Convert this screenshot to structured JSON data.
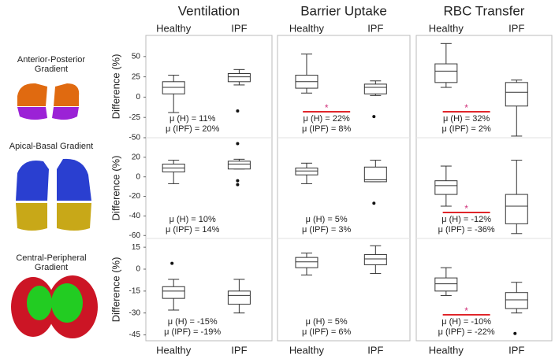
{
  "chart_data": {
    "type": "box",
    "columns": [
      "Ventilation",
      "Barrier Uptake",
      "RBC Transfer"
    ],
    "categories": [
      "Healthy",
      "IPF"
    ],
    "rows": [
      {
        "title": "Anterior-Posterior Gradient",
        "ylabel": "Difference (%)",
        "ylim": [
          -50,
          76
        ],
        "yticks": [
          -50,
          -25,
          0,
          25,
          50
        ],
        "panels": [
          {
            "boxes": [
              {
                "whislo": -19,
                "q1": 4,
                "med": 12,
                "q3": 19,
                "whishi": 27,
                "fliers": []
              },
              {
                "whislo": 15,
                "q1": 19,
                "med": 25,
                "q3": 29,
                "whishi": 34,
                "fliers": [
                  -17
                ]
              }
            ],
            "annotations": [
              "μ (H) = 11%",
              "μ (IPF) = 20%"
            ]
          },
          {
            "boxes": [
              {
                "whislo": 5,
                "q1": 11,
                "med": 19,
                "q3": 27,
                "whishi": 53,
                "fliers": []
              },
              {
                "whislo": 2,
                "q1": 4,
                "med": 12,
                "q3": 16,
                "whishi": 20,
                "fliers": [
                  -24
                ]
              }
            ],
            "annotations": [
              "μ (H) = 22%",
              "μ (IPF) = 8%"
            ],
            "significance": "*"
          },
          {
            "boxes": [
              {
                "whislo": 12,
                "q1": 18,
                "med": 32,
                "q3": 41,
                "whishi": 66,
                "fliers": []
              },
              {
                "whislo": -48,
                "q1": -11,
                "med": 6,
                "q3": 18,
                "whishi": 21,
                "fliers": []
              }
            ],
            "annotations": [
              "μ (H) = 32%",
              "μ (IPF) = 2%"
            ],
            "significance": "*"
          }
        ]
      },
      {
        "title": "Apical-Basal Gradient",
        "ylabel": "Difference (%)",
        "ylim": [
          -63,
          40
        ],
        "yticks": [
          -60,
          -40,
          -20,
          0,
          20
        ],
        "panels": [
          {
            "boxes": [
              {
                "whislo": -7,
                "q1": 5,
                "med": 9,
                "q3": 13,
                "whishi": 17,
                "fliers": []
              },
              {
                "whislo": 8,
                "q1": 8,
                "med": 13,
                "q3": 16,
                "whishi": 18,
                "fliers": [
                  34,
                  -4,
                  -8
                ]
              }
            ],
            "annotations": [
              "μ (H) = 10%",
              "μ (IPF) = 14%"
            ]
          },
          {
            "boxes": [
              {
                "whislo": -7,
                "q1": 2,
                "med": 6,
                "q3": 9,
                "whishi": 14,
                "fliers": []
              },
              {
                "whislo": -5,
                "q1": -5,
                "med": -3,
                "q3": 10,
                "whishi": 17,
                "fliers": [
                  -27
                ]
              }
            ],
            "annotations": [
              "μ (H) = 5%",
              "μ (IPF) = 3%"
            ]
          },
          {
            "boxes": [
              {
                "whislo": -30,
                "q1": -18,
                "med": -9,
                "q3": -4,
                "whishi": 11,
                "fliers": []
              },
              {
                "whislo": -58,
                "q1": -48,
                "med": -30,
                "q3": -18,
                "whishi": 17,
                "fliers": []
              }
            ],
            "annotations": [
              "μ (H) = -12%",
              "μ (IPF) = -36%"
            ],
            "significance": "*"
          }
        ]
      },
      {
        "title": "Central-Peripheral Gradient",
        "ylabel": "Difference (%)",
        "ylim": [
          -49,
          21
        ],
        "yticks": [
          -45,
          -30,
          -15,
          0,
          15
        ],
        "panels": [
          {
            "boxes": [
              {
                "whislo": -28,
                "q1": -20,
                "med": -15,
                "q3": -12,
                "whishi": -7,
                "fliers": [
                  4
                ]
              },
              {
                "whislo": -30,
                "q1": -24,
                "med": -18,
                "q3": -15,
                "whishi": -7,
                "fliers": []
              }
            ],
            "annotations": [
              "μ (H) = -15%",
              "μ (IPF) = -19%"
            ]
          },
          {
            "boxes": [
              {
                "whislo": -4,
                "q1": 1,
                "med": 5,
                "q3": 8,
                "whishi": 11,
                "fliers": []
              },
              {
                "whislo": -3,
                "q1": 3,
                "med": 7,
                "q3": 10,
                "whishi": 16,
                "fliers": []
              }
            ],
            "annotations": [
              "μ (H) = 5%",
              "μ (IPF) = 6%"
            ]
          },
          {
            "boxes": [
              {
                "whislo": -18,
                "q1": -15,
                "med": -10,
                "q3": -6,
                "whishi": 1,
                "fliers": []
              },
              {
                "whislo": -30,
                "q1": -27,
                "med": -21,
                "q3": -16,
                "whishi": -9,
                "fliers": [
                  -44
                ]
              }
            ],
            "annotations": [
              "μ (H) = -10%",
              "μ (IPF) = -22%"
            ],
            "significance": "*"
          }
        ]
      }
    ]
  }
}
